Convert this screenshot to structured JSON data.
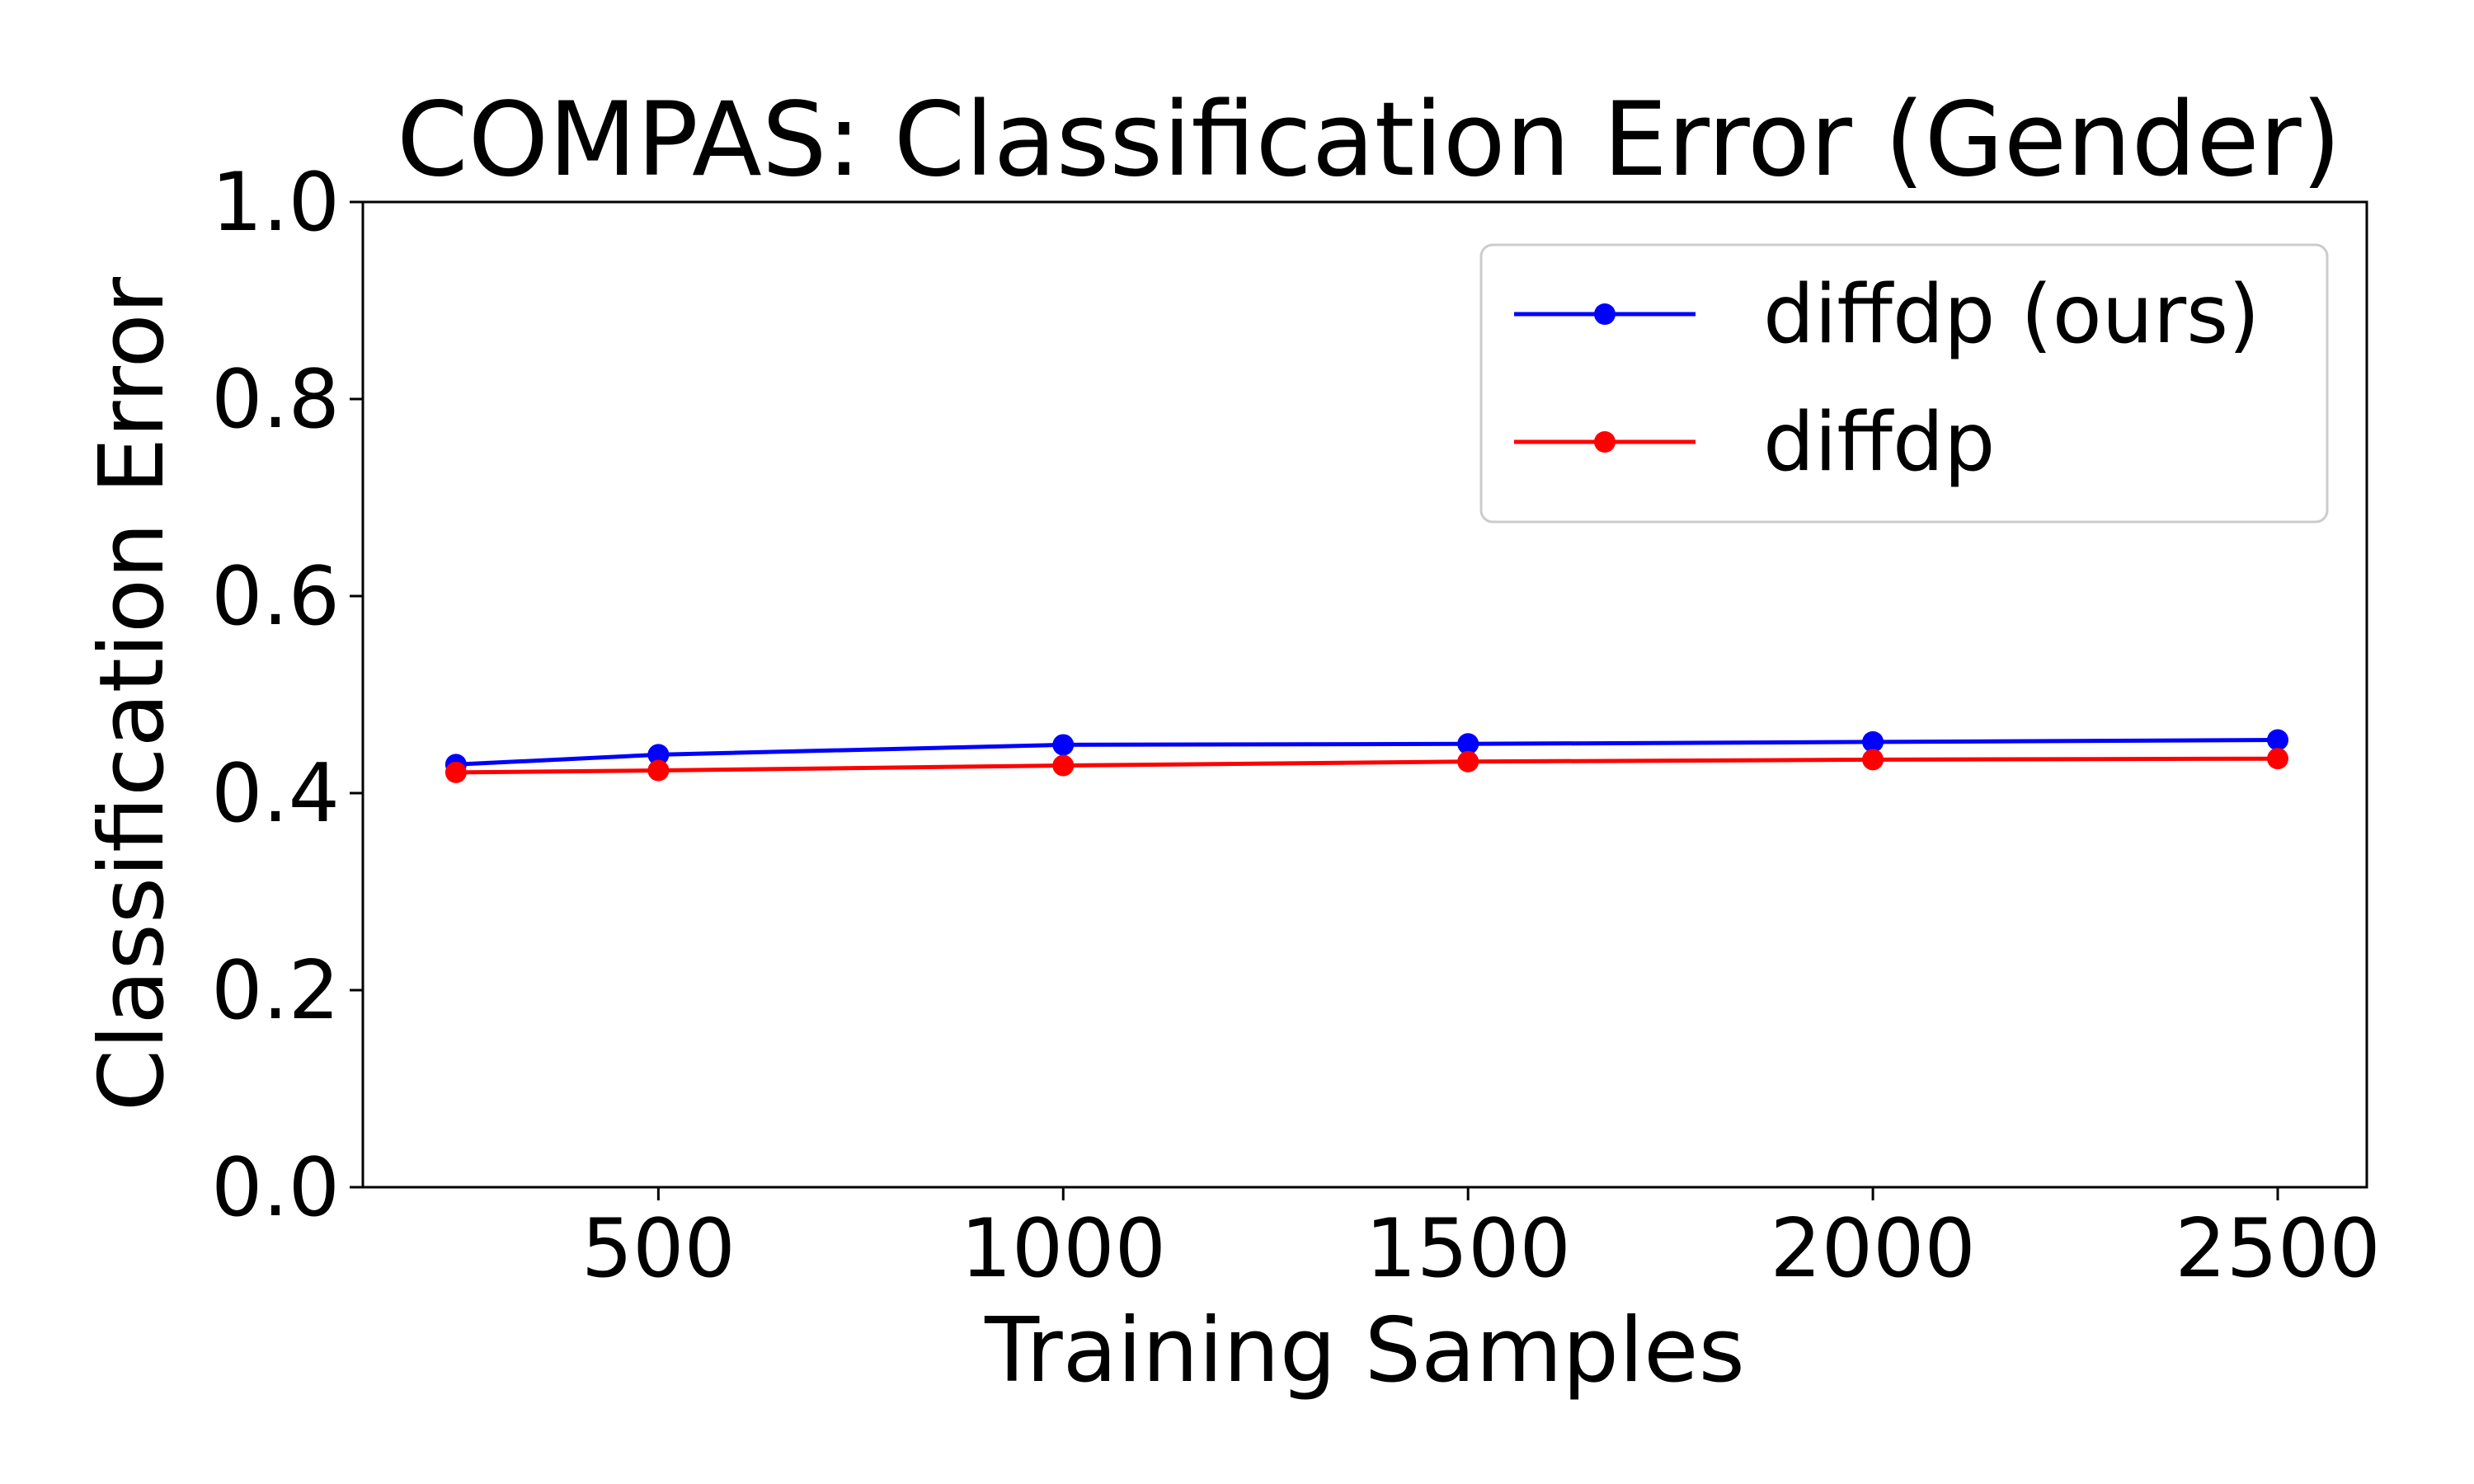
{
  "chart_data": {
    "type": "line",
    "title": "COMPAS: Classification Error (Gender)",
    "xlabel": "Training Samples",
    "ylabel": "Classification Error",
    "xlim": [
      135,
      2610
    ],
    "ylim": [
      0.0,
      1.0
    ],
    "xticks": [
      500,
      1000,
      1500,
      2000,
      2500
    ],
    "xtick_labels": [
      "500",
      "1000",
      "1500",
      "2000",
      "2500"
    ],
    "yticks": [
      0.0,
      0.2,
      0.4,
      0.6,
      0.8,
      1.0
    ],
    "ytick_labels": [
      "0.0",
      "0.2",
      "0.4",
      "0.6",
      "0.8",
      "1.0"
    ],
    "grid": false,
    "legend_position": "top-right",
    "x": [
      250,
      500,
      1000,
      1500,
      2000,
      2500
    ],
    "series": [
      {
        "name": "diffdp (ours)",
        "color": "#0000ff",
        "values": [
          0.429,
          0.439,
          0.449,
          0.45,
          0.452,
          0.454
        ]
      },
      {
        "name": "diffdp",
        "color": "#ff0000",
        "values": [
          0.421,
          0.423,
          0.428,
          0.432,
          0.434,
          0.435
        ]
      }
    ]
  }
}
